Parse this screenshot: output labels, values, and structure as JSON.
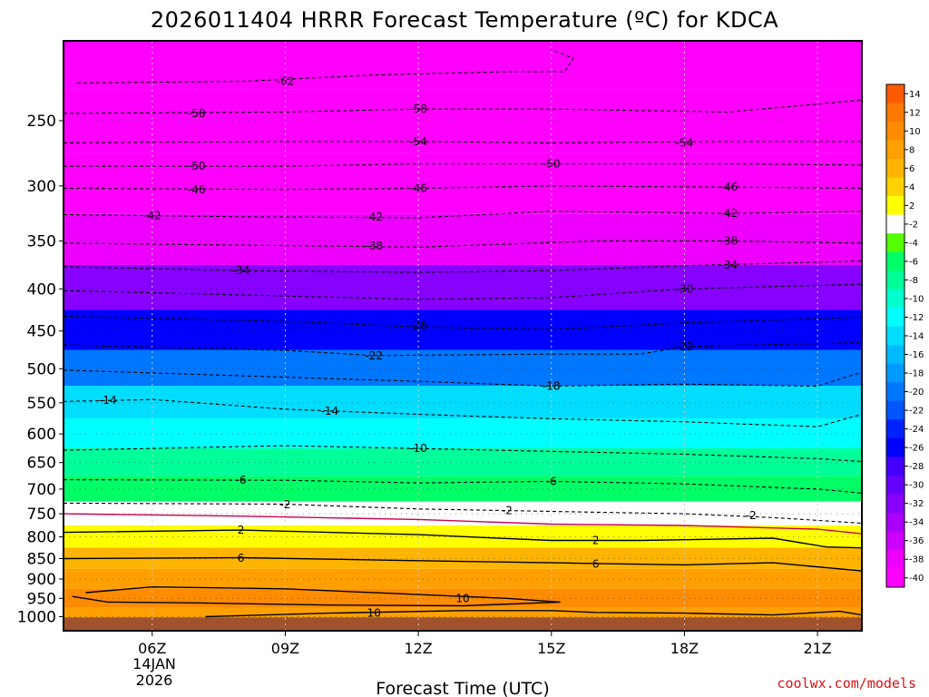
{
  "chart_data": {
    "type": "heatmap",
    "title": "2026011404 HRRR Forecast Temperature (ºC) for KDCA",
    "xlabel": "Forecast Time (UTC)",
    "ylabel": "",
    "x_ticks": [
      "06Z",
      "09Z",
      "12Z",
      "15Z",
      "18Z",
      "21Z"
    ],
    "x_tick_hours": [
      6,
      9,
      12,
      15,
      18,
      21
    ],
    "x_date_label": [
      "14JAN",
      "2026"
    ],
    "x_range_hours": [
      4,
      22
    ],
    "y_ticks": [
      250,
      300,
      350,
      400,
      450,
      500,
      550,
      600,
      650,
      700,
      750,
      800,
      850,
      900,
      950,
      1000
    ],
    "y_range_hpa": [
      1040,
      200
    ],
    "y_scale": "log-pressure",
    "colorbar": {
      "labels": [
        "14",
        "12",
        "10",
        "8",
        "6",
        "4",
        "2",
        "-2",
        "-4",
        "-6",
        "-8",
        "-10",
        "-12",
        "-14",
        "-16",
        "-18",
        "-20",
        "-22",
        "-24",
        "-26",
        "-28",
        "-30",
        "-32",
        "-34",
        "-36",
        "-38",
        "-40"
      ],
      "colors": [
        "#ff5a00",
        "#ff7800",
        "#ff8c00",
        "#ffa000",
        "#ffb400",
        "#ffd200",
        "#ffff00",
        "#ffffff",
        "#55ff00",
        "#00ff66",
        "#00ff99",
        "#00ffcc",
        "#00ffff",
        "#00ddff",
        "#00bbff",
        "#0099ff",
        "#0077ff",
        "#0055ff",
        "#0022ff",
        "#0000ff",
        "#4400ff",
        "#6600ff",
        "#8800ff",
        "#aa00ff",
        "#cc00ff",
        "#ee00ff",
        "#ff00ff"
      ]
    },
    "ground_color": "#a0522d",
    "temperature_profile": [
      {
        "p": 1000,
        "t": 9
      },
      {
        "p": 950,
        "t": 10
      },
      {
        "p": 900,
        "t": 8
      },
      {
        "p": 850,
        "t": 6
      },
      {
        "p": 800,
        "t": 3
      },
      {
        "p": 750,
        "t": -1
      },
      {
        "p": 700,
        "t": -5
      },
      {
        "p": 650,
        "t": -8
      },
      {
        "p": 600,
        "t": -11
      },
      {
        "p": 550,
        "t": -14
      },
      {
        "p": 500,
        "t": -19
      },
      {
        "p": 450,
        "t": -25
      },
      {
        "p": 400,
        "t": -31
      },
      {
        "p": 350,
        "t": -38
      },
      {
        "p": 300,
        "t": -46
      },
      {
        "p": 250,
        "t": -55
      },
      {
        "p": 210,
        "t": -64
      }
    ],
    "contours": [
      {
        "value": 10,
        "style": "solid",
        "color": "#000000",
        "points": [
          [
            7.2,
            1000
          ],
          [
            10,
            990
          ],
          [
            13,
            983
          ],
          [
            15,
            983
          ],
          [
            16,
            988
          ],
          [
            18,
            990
          ],
          [
            20,
            995
          ],
          [
            21.5,
            985
          ],
          [
            22,
            995
          ]
        ]
      },
      {
        "value": 10,
        "style": "solid",
        "color": "#000000",
        "points": [
          [
            4.5,
            935
          ],
          [
            6,
            920
          ],
          [
            9,
            925
          ],
          [
            12,
            940
          ],
          [
            14,
            950
          ],
          [
            15.2,
            960
          ],
          [
            13,
            970
          ],
          [
            10,
            968
          ],
          [
            7,
            962
          ],
          [
            5,
            960
          ],
          [
            4.2,
            945
          ]
        ]
      },
      {
        "value": 6,
        "style": "solid",
        "color": "#000000",
        "points": [
          [
            4,
            850
          ],
          [
            8,
            848
          ],
          [
            12,
            855
          ],
          [
            15,
            860
          ],
          [
            18,
            865
          ],
          [
            20,
            860
          ],
          [
            22,
            880
          ]
        ]
      },
      {
        "value": 2,
        "style": "solid",
        "color": "#000000",
        "points": [
          [
            4,
            790
          ],
          [
            8,
            785
          ],
          [
            12,
            795
          ],
          [
            15,
            808
          ],
          [
            17,
            808
          ],
          [
            20,
            803
          ],
          [
            21.2,
            823
          ],
          [
            22,
            825
          ]
        ]
      },
      {
        "value": 0,
        "style": "solid",
        "color": "#cc0055",
        "points": [
          [
            4,
            750
          ],
          [
            8,
            755
          ],
          [
            12,
            762
          ],
          [
            15,
            772
          ],
          [
            18,
            775
          ],
          [
            21,
            783
          ],
          [
            22,
            793
          ]
        ]
      },
      {
        "value": -2,
        "style": "dashed",
        "color": "#000000",
        "points": [
          [
            4,
            728
          ],
          [
            9,
            730
          ],
          [
            12,
            740
          ],
          [
            15,
            745
          ],
          [
            18,
            750
          ],
          [
            20,
            758
          ],
          [
            22,
            770
          ]
        ]
      },
      {
        "value": -6,
        "style": "dashed",
        "color": "#000000",
        "points": [
          [
            4,
            682
          ],
          [
            9,
            683
          ],
          [
            12,
            688
          ],
          [
            15,
            685
          ],
          [
            18,
            690
          ],
          [
            21,
            700
          ],
          [
            22,
            708
          ]
        ]
      },
      {
        "value": -10,
        "style": "dashed",
        "color": "#000000",
        "points": [
          [
            4,
            628
          ],
          [
            9,
            620
          ],
          [
            12,
            625
          ],
          [
            15,
            630
          ],
          [
            18,
            635
          ],
          [
            21,
            643
          ],
          [
            22,
            648
          ]
        ]
      },
      {
        "value": -14,
        "style": "dashed",
        "color": "#000000",
        "points": [
          [
            4,
            548
          ],
          [
            6,
            545
          ],
          [
            9,
            560
          ],
          [
            12,
            568
          ],
          [
            15,
            575
          ],
          [
            18,
            580
          ],
          [
            21,
            588
          ],
          [
            22,
            568
          ]
        ]
      },
      {
        "value": -18,
        "style": "dashed",
        "color": "#000000",
        "points": [
          [
            4,
            502
          ],
          [
            9,
            512
          ],
          [
            12,
            518
          ],
          [
            15,
            525
          ],
          [
            18,
            522
          ],
          [
            21,
            525
          ],
          [
            22,
            505
          ]
        ]
      },
      {
        "value": -22,
        "style": "dashed",
        "color": "#000000",
        "points": [
          [
            4,
            468
          ],
          [
            9,
            475
          ],
          [
            11,
            482
          ],
          [
            15,
            480
          ],
          [
            17,
            480
          ],
          [
            18,
            470
          ],
          [
            22,
            465
          ]
        ]
      },
      {
        "value": -26,
        "style": "dashed",
        "color": "#000000",
        "points": [
          [
            4,
            432
          ],
          [
            9,
            438
          ],
          [
            12,
            445
          ],
          [
            15,
            448
          ],
          [
            18,
            440
          ],
          [
            22,
            433
          ]
        ]
      },
      {
        "value": -30,
        "style": "dashed",
        "color": "#000000",
        "points": [
          [
            4,
            402
          ],
          [
            9,
            408
          ],
          [
            12,
            412
          ],
          [
            15,
            410
          ],
          [
            18,
            400
          ],
          [
            22,
            395
          ]
        ]
      },
      {
        "value": -34,
        "style": "dashed",
        "color": "#000000",
        "points": [
          [
            4,
            376
          ],
          [
            8,
            380
          ],
          [
            12,
            382
          ],
          [
            15,
            380
          ],
          [
            18,
            375
          ],
          [
            22,
            370
          ]
        ]
      },
      {
        "value": -38,
        "style": "dashed",
        "color": "#000000",
        "points": [
          [
            4,
            352
          ],
          [
            8,
            354
          ],
          [
            12,
            356
          ],
          [
            16,
            350
          ],
          [
            19,
            350
          ],
          [
            22,
            352
          ]
        ]
      },
      {
        "value": -42,
        "style": "dashed",
        "color": "#000000",
        "points": [
          [
            4,
            325
          ],
          [
            8,
            327
          ],
          [
            12,
            328
          ],
          [
            15,
            322
          ],
          [
            19,
            324
          ],
          [
            22,
            322
          ]
        ]
      },
      {
        "value": -46,
        "style": "dashed",
        "color": "#000000",
        "points": [
          [
            4,
            302
          ],
          [
            9,
            303
          ],
          [
            12,
            302
          ],
          [
            15,
            300
          ],
          [
            19,
            301
          ],
          [
            22,
            302
          ]
        ]
      },
      {
        "value": -50,
        "style": "dashed",
        "color": "#000000",
        "points": [
          [
            4,
            284
          ],
          [
            9,
            284
          ],
          [
            12,
            282
          ],
          [
            15,
            282
          ],
          [
            19,
            282
          ],
          [
            22,
            283
          ]
        ]
      },
      {
        "value": -54,
        "style": "dashed",
        "color": "#000000",
        "points": [
          [
            4,
            266
          ],
          [
            9,
            265
          ],
          [
            12,
            265
          ],
          [
            15,
            266
          ],
          [
            19,
            265
          ],
          [
            22,
            265
          ]
        ]
      },
      {
        "value": -58,
        "style": "dashed",
        "color": "#000000",
        "points": [
          [
            4,
            245
          ],
          [
            9,
            244
          ],
          [
            12,
            242
          ],
          [
            15,
            242
          ],
          [
            19,
            244
          ],
          [
            22,
            236
          ]
        ]
      },
      {
        "value": -62,
        "style": "dashed",
        "color": "#000000",
        "points": [
          [
            4.3,
            225
          ],
          [
            8,
            224
          ],
          [
            11,
            220
          ],
          [
            14,
            218
          ],
          [
            15.3,
            218
          ],
          [
            15.5,
            210
          ],
          [
            15,
            205
          ]
        ]
      }
    ],
    "contour_labels": [
      {
        "text": "-62",
        "x": 9,
        "y": 224
      },
      {
        "text": "-58",
        "x": 7,
        "y": 245
      },
      {
        "text": "-58",
        "x": 12,
        "y": 242
      },
      {
        "text": "-54",
        "x": 12,
        "y": 265
      },
      {
        "text": "-54",
        "x": 18,
        "y": 266
      },
      {
        "text": "-50",
        "x": 7,
        "y": 284
      },
      {
        "text": "-50",
        "x": 15,
        "y": 282
      },
      {
        "text": "-46",
        "x": 7,
        "y": 303
      },
      {
        "text": "-46",
        "x": 12,
        "y": 302
      },
      {
        "text": "-46",
        "x": 19,
        "y": 301
      },
      {
        "text": "-42",
        "x": 6,
        "y": 326
      },
      {
        "text": "-42",
        "x": 11,
        "y": 327
      },
      {
        "text": "-42",
        "x": 19,
        "y": 324
      },
      {
        "text": "-38",
        "x": 11,
        "y": 355
      },
      {
        "text": "-38",
        "x": 19,
        "y": 350
      },
      {
        "text": "-34",
        "x": 8,
        "y": 380
      },
      {
        "text": "-34",
        "x": 19,
        "y": 374
      },
      {
        "text": "-30",
        "x": 18,
        "y": 400
      },
      {
        "text": "-26",
        "x": 12,
        "y": 443
      },
      {
        "text": "-22",
        "x": 11,
        "y": 482
      },
      {
        "text": "-22",
        "x": 18,
        "y": 470
      },
      {
        "text": "-18",
        "x": 15,
        "y": 525
      },
      {
        "text": "-14",
        "x": 5,
        "y": 546
      },
      {
        "text": "-14",
        "x": 10,
        "y": 563
      },
      {
        "text": "-10",
        "x": 12,
        "y": 625
      },
      {
        "text": "-6",
        "x": 8,
        "y": 683
      },
      {
        "text": "-6",
        "x": 15,
        "y": 685
      },
      {
        "text": "-2",
        "x": 9,
        "y": 731
      },
      {
        "text": "-2",
        "x": 14,
        "y": 743
      },
      {
        "text": "-2",
        "x": 19.5,
        "y": 754
      },
      {
        "text": "2",
        "x": 8,
        "y": 785
      },
      {
        "text": "2",
        "x": 16,
        "y": 808
      },
      {
        "text": "6",
        "x": 8,
        "y": 849
      },
      {
        "text": "6",
        "x": 16,
        "y": 863
      },
      {
        "text": "10",
        "x": 13,
        "y": 950
      },
      {
        "text": "10",
        "x": 11,
        "y": 990
      }
    ],
    "credit": "coolwx.com/models"
  }
}
